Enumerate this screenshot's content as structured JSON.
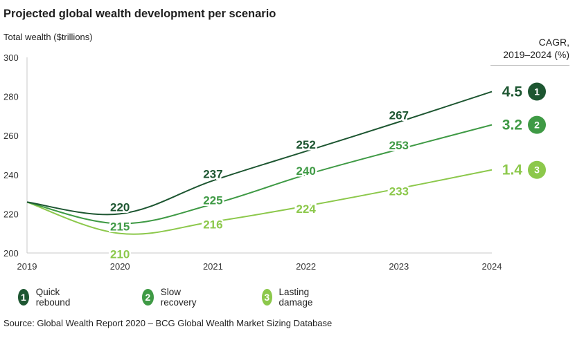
{
  "title": "Projected global wealth development per scenario",
  "source": "Source: Global Wealth Report 2020 – BCG Global Wealth Market Sizing Database",
  "cagr_header": [
    "CAGR,",
    "2019–2024 (%)"
  ],
  "chart_data": {
    "type": "line",
    "title": "Projected global wealth development per scenario",
    "ylabel": "Total wealth ($trillions)",
    "xlabel": "",
    "x": [
      2019,
      2020,
      2021,
      2022,
      2023,
      2024
    ],
    "ylim": [
      200,
      300
    ],
    "y_ticks": [
      200,
      220,
      240,
      260,
      280,
      300
    ],
    "grid": false,
    "legend_position": "bottom",
    "series": [
      {
        "name": "Quick rebound",
        "badge": "1",
        "color": "#1d5631",
        "values": [
          226,
          220,
          237,
          252,
          267,
          282.5
        ],
        "labels": [
          "",
          "220",
          "237",
          "252",
          "267",
          ""
        ],
        "cagr": "4.5"
      },
      {
        "name": "Slow recovery",
        "badge": "2",
        "color": "#3f9a45",
        "values": [
          226,
          215,
          225,
          240,
          253,
          265.5
        ],
        "labels": [
          "",
          "215",
          "225",
          "240",
          "253",
          ""
        ],
        "cagr": "3.2"
      },
      {
        "name": "Lasting damage",
        "badge": "3",
        "color": "#8cc84b",
        "values": [
          226,
          210,
          216,
          224,
          233,
          242.5
        ],
        "labels": [
          "",
          "210",
          "216",
          "224",
          "233",
          ""
        ],
        "cagr": "1.4"
      }
    ]
  }
}
